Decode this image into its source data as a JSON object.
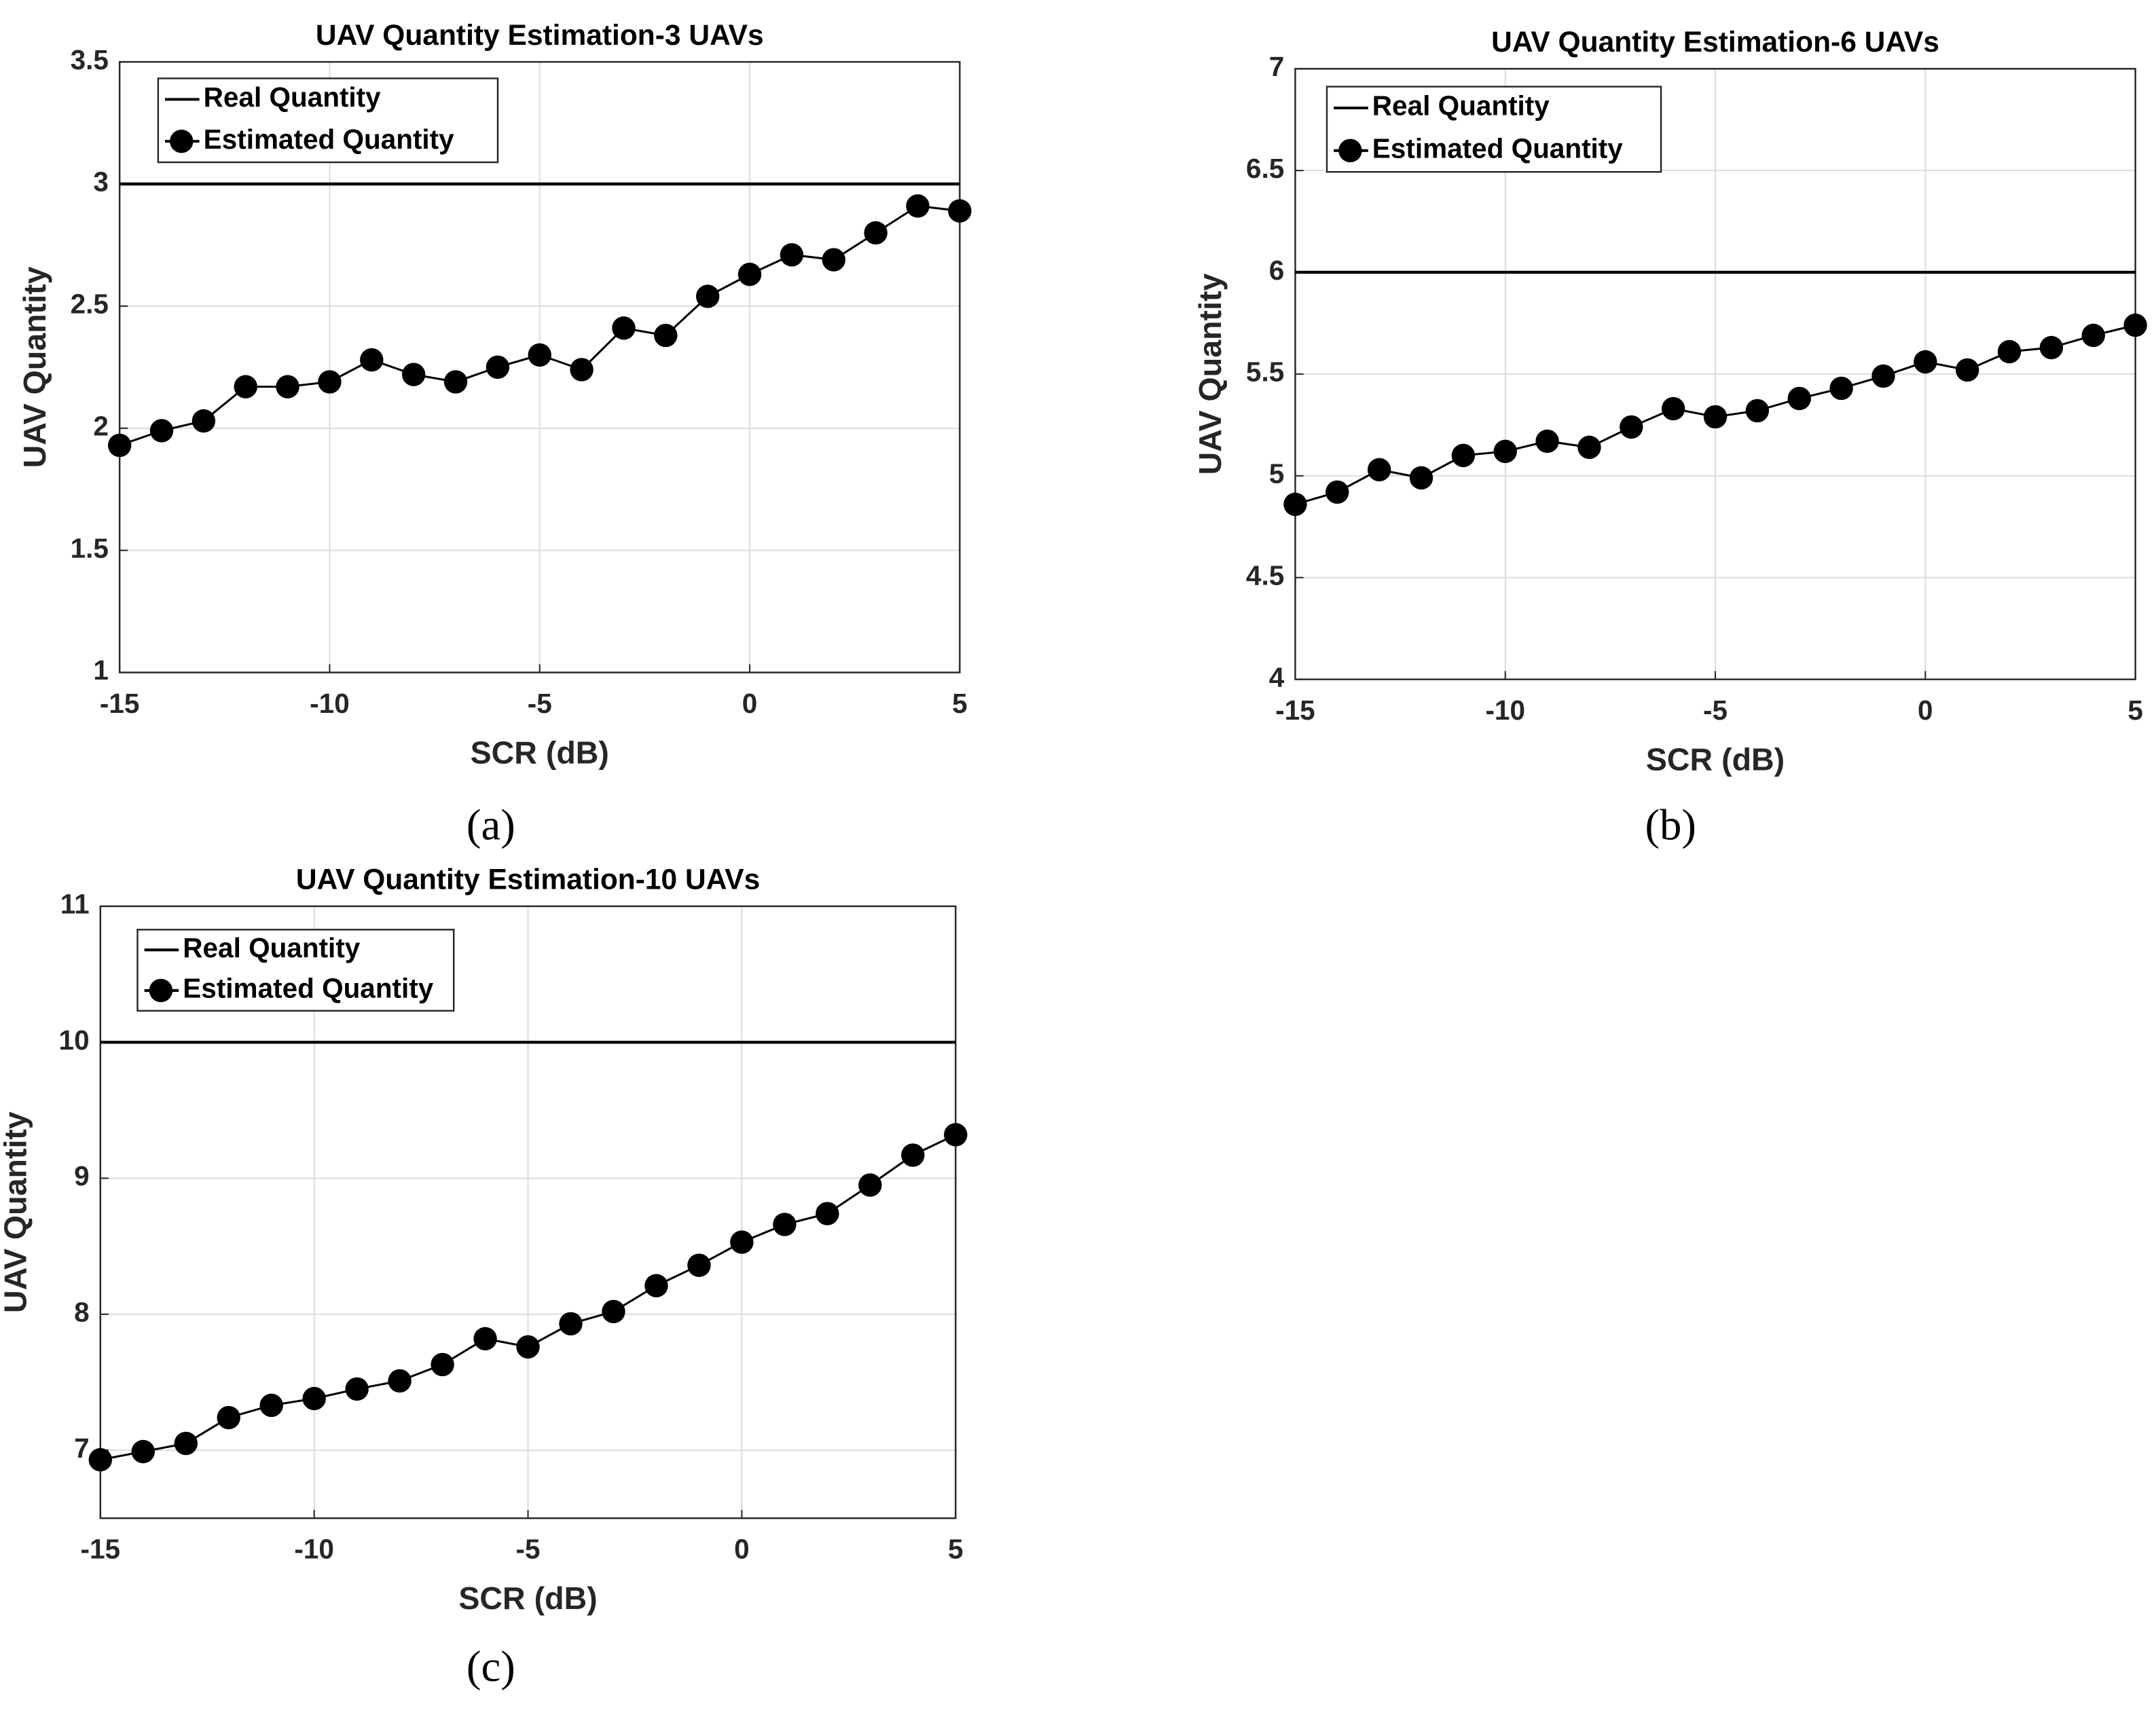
{
  "chart_data": [
    {
      "type": "line",
      "title": "UAV Quantity Estimation-3 UAVs",
      "xlabel": "SCR (dB)",
      "ylabel": "UAV Quantity",
      "caption": "(a)",
      "x": [
        -15,
        -14,
        -13,
        -12,
        -11,
        -10,
        -9,
        -8,
        -7,
        -6,
        -5,
        -4,
        -3,
        -2,
        -1,
        0,
        1,
        2,
        3,
        4,
        5
      ],
      "series": [
        {
          "name": "Real Quantity",
          "color": "#000000",
          "marker": false,
          "values": [
            3,
            3,
            3,
            3,
            3,
            3,
            3,
            3,
            3,
            3,
            3,
            3,
            3,
            3,
            3,
            3,
            3,
            3,
            3,
            3,
            3
          ]
        },
        {
          "name": "Estimated Quantity",
          "color": "#000000",
          "marker": true,
          "values": [
            1.93,
            1.99,
            2.03,
            2.17,
            2.17,
            2.19,
            2.28,
            2.22,
            2.19,
            2.25,
            2.3,
            2.24,
            2.41,
            2.38,
            2.54,
            2.63,
            2.71,
            2.69,
            2.8,
            2.91,
            2.89
          ]
        }
      ],
      "xlim": [
        -15,
        5
      ],
      "xticks": [
        -15,
        -10,
        -5,
        0,
        5
      ],
      "ylim": [
        1,
        3.5
      ],
      "yticks": [
        1,
        1.5,
        2,
        2.5,
        3,
        3.5
      ],
      "grid": true,
      "legend": "upper left"
    },
    {
      "type": "line",
      "title": "UAV Quantity Estimation-6 UAVs",
      "xlabel": "SCR (dB)",
      "ylabel": "UAV Quantity",
      "caption": "(b)",
      "x": [
        -15,
        -14,
        -13,
        -12,
        -11,
        -10,
        -9,
        -8,
        -7,
        -6,
        -5,
        -4,
        -3,
        -2,
        -1,
        0,
        1,
        2,
        3,
        4,
        5
      ],
      "series": [
        {
          "name": "Real Quantity",
          "color": "#000000",
          "marker": false,
          "values": [
            6,
            6,
            6,
            6,
            6,
            6,
            6,
            6,
            6,
            6,
            6,
            6,
            6,
            6,
            6,
            6,
            6,
            6,
            6,
            6,
            6
          ]
        },
        {
          "name": "Estimated Quantity",
          "color": "#000000",
          "marker": true,
          "values": [
            4.86,
            4.92,
            5.03,
            4.99,
            5.1,
            5.12,
            5.17,
            5.14,
            5.24,
            5.33,
            5.29,
            5.32,
            5.38,
            5.43,
            5.49,
            5.56,
            5.52,
            5.61,
            5.63,
            5.69,
            5.74
          ]
        }
      ],
      "xlim": [
        -15,
        5
      ],
      "xticks": [
        -15,
        -10,
        -5,
        0,
        5
      ],
      "ylim": [
        4,
        7
      ],
      "yticks": [
        4,
        4.5,
        5,
        5.5,
        6,
        6.5,
        7
      ],
      "grid": true,
      "legend": "upper left"
    },
    {
      "type": "line",
      "title": "UAV Quantity Estimation-10 UAVs",
      "xlabel": "SCR (dB)",
      "ylabel": "UAV Quantity",
      "caption": "(c)",
      "x": [
        -15,
        -14,
        -13,
        -12,
        -11,
        -10,
        -9,
        -8,
        -7,
        -6,
        -5,
        -4,
        -3,
        -2,
        -1,
        0,
        1,
        2,
        3,
        4,
        5
      ],
      "series": [
        {
          "name": "Real Quantity",
          "color": "#000000",
          "marker": false,
          "values": [
            10,
            10,
            10,
            10,
            10,
            10,
            10,
            10,
            10,
            10,
            10,
            10,
            10,
            10,
            10,
            10,
            10,
            10,
            10,
            10,
            10
          ]
        },
        {
          "name": "Estimated Quantity",
          "color": "#000000",
          "marker": true,
          "values": [
            6.93,
            6.99,
            7.05,
            7.24,
            7.33,
            7.38,
            7.45,
            7.51,
            7.63,
            7.82,
            7.76,
            7.93,
            8.02,
            8.21,
            8.36,
            8.53,
            8.66,
            8.74,
            8.95,
            9.17,
            9.32
          ]
        }
      ],
      "xlim": [
        -15,
        5
      ],
      "xticks": [
        -15,
        -10,
        -5,
        0,
        5
      ],
      "ylim": [
        6.5,
        11
      ],
      "yticks": [
        7,
        8,
        9,
        10,
        11
      ],
      "grid": true,
      "legend": "upper left"
    }
  ]
}
